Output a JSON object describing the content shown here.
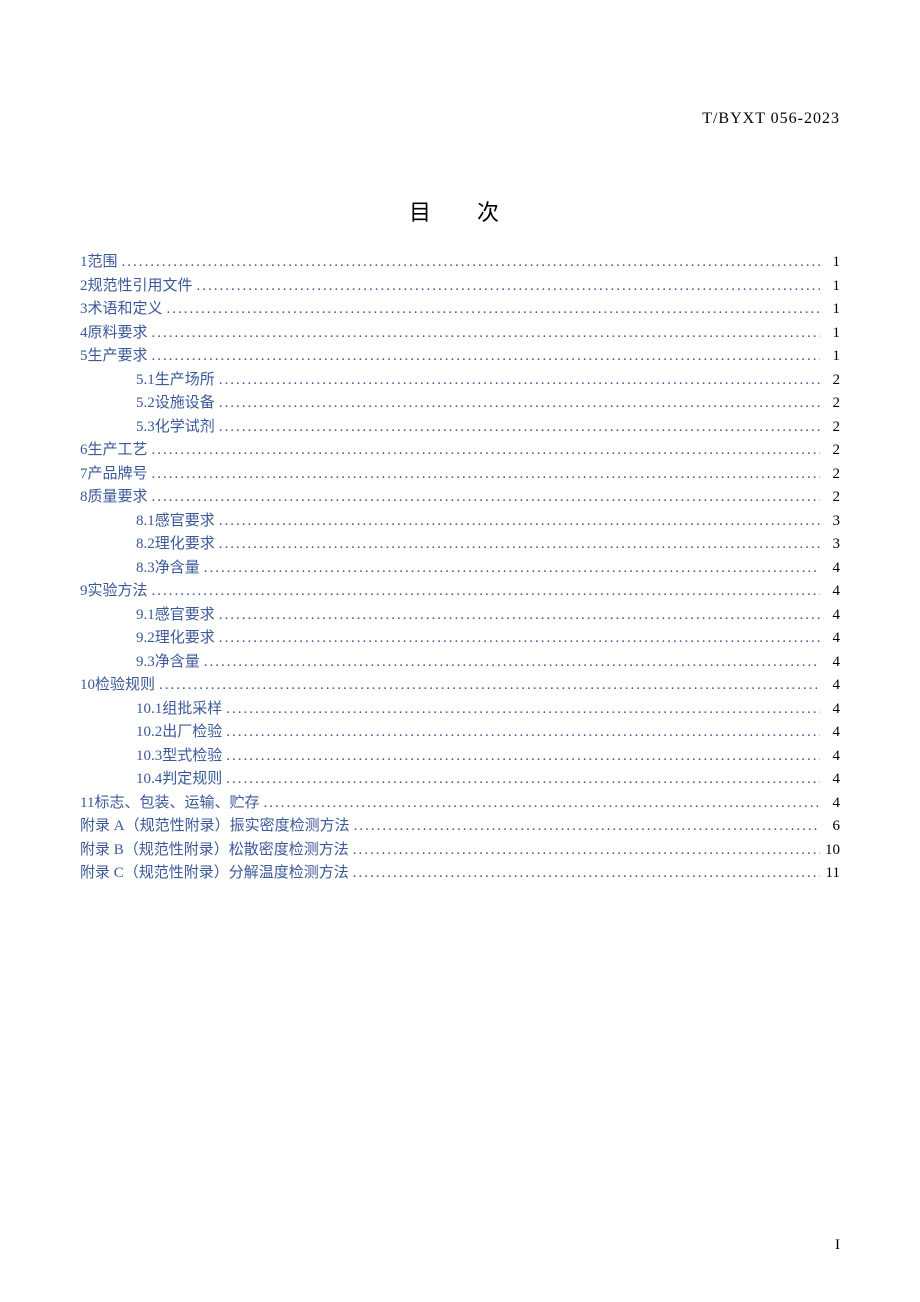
{
  "header_code": "T/BYXT 056-2023",
  "title": "目　次",
  "link_color": "#3b5998",
  "text_color": "#000000",
  "background_color": "#ffffff",
  "font_size_body": 15,
  "font_size_title": 22,
  "line_height": 23.5,
  "toc": [
    {
      "level": 1,
      "num": "1",
      "label": "范围",
      "page": "1"
    },
    {
      "level": 1,
      "num": "2",
      "label": "规范性引用文件",
      "page": "1"
    },
    {
      "level": 1,
      "num": "3",
      "label": "术语和定义",
      "page": "1"
    },
    {
      "level": 1,
      "num": "4",
      "label": "原料要求",
      "page": "1"
    },
    {
      "level": 1,
      "num": "5",
      "label": "生产要求",
      "page": "1"
    },
    {
      "level": 2,
      "num": "5.1",
      "label": "生产场所",
      "page": "2"
    },
    {
      "level": 2,
      "num": "5.2",
      "label": "设施设备",
      "page": "2"
    },
    {
      "level": 2,
      "num": "5.3",
      "label": "化学试剂",
      "page": "2"
    },
    {
      "level": 1,
      "num": "6",
      "label": "生产工艺",
      "page": "2"
    },
    {
      "level": 1,
      "num": "7",
      "label": "产品牌号",
      "page": "2"
    },
    {
      "level": 1,
      "num": "8",
      "label": "质量要求",
      "page": "2"
    },
    {
      "level": 2,
      "num": "8.1",
      "label": "感官要求",
      "page": "3"
    },
    {
      "level": 2,
      "num": "8.2",
      "label": "理化要求",
      "page": "3"
    },
    {
      "level": 2,
      "num": "8.3",
      "label": "净含量",
      "page": "4"
    },
    {
      "level": 1,
      "num": "9",
      "label": "实验方法",
      "page": "4"
    },
    {
      "level": 2,
      "num": "9.1",
      "label": "感官要求",
      "page": "4"
    },
    {
      "level": 2,
      "num": "9.2",
      "label": "理化要求",
      "page": "4"
    },
    {
      "level": 2,
      "num": "9.3",
      "label": "净含量",
      "page": "4"
    },
    {
      "level": 1,
      "num": "10",
      "label": "检验规则",
      "page": "4"
    },
    {
      "level": 2,
      "num": "10.1",
      "label": "组批采样",
      "page": "4"
    },
    {
      "level": 2,
      "num": "10.2",
      "label": "出厂检验",
      "page": "4"
    },
    {
      "level": 2,
      "num": "10.3",
      "label": "型式检验",
      "page": "4"
    },
    {
      "level": 2,
      "num": "10.4",
      "label": "判定规则",
      "page": "4"
    },
    {
      "level": 1,
      "num": "11",
      "label": "标志、包装、运输、贮存",
      "page": "4"
    },
    {
      "level": 1,
      "num": "附录 A",
      "label": "（规范性附录）振实密度检测方法",
      "page": "6"
    },
    {
      "level": 1,
      "num": "附录 B",
      "label": "（规范性附录）松散密度检测方法",
      "page": "10"
    },
    {
      "level": 1,
      "num": "附录 C",
      "label": "（规范性附录）分解温度检测方法",
      "page": "11"
    }
  ],
  "footer_page_label": "I"
}
